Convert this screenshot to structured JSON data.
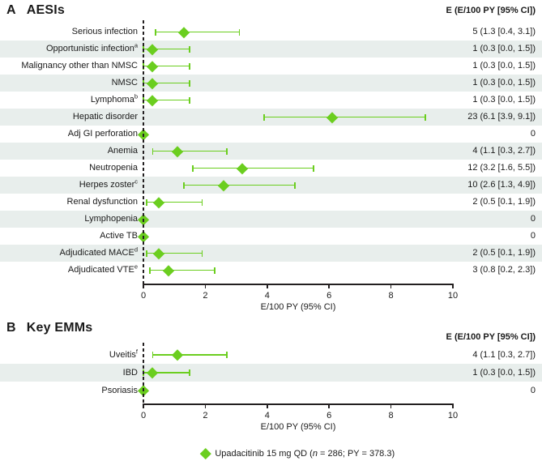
{
  "colors": {
    "marker_green": "#6BCE1F",
    "row_band": "#E8EEEC",
    "axis_black": "#231F20",
    "text": "#1A1A1A"
  },
  "legend": {
    "marker": "diamond-icon",
    "before_n": "Upadacitinib 15 mg QD (",
    "n": "n",
    "after_n": " = 286; PY = 378.3)"
  },
  "chart_data": [
    {
      "type": "scatter",
      "subtype": "forest-plot",
      "panel_label": "A",
      "title": "AESIs",
      "value_column_header": "E (E/100 PY [95% CI])",
      "xlabel": "E/100 PY (95% CI)",
      "xlim": [
        0,
        10
      ],
      "xticks": [
        0,
        2,
        4,
        6,
        8,
        10
      ],
      "grid": false,
      "series_name": "Upadacitinib 15 mg QD",
      "rows": [
        {
          "category": "Serious infection",
          "sup": "",
          "events": 5,
          "rate": 1.3,
          "ci_low": 0.4,
          "ci_high": 3.1,
          "value_label": "5 (1.3 [0.4, 3.1])"
        },
        {
          "category": "Opportunistic infection",
          "sup": "a",
          "events": 1,
          "rate": 0.3,
          "ci_low": 0.0,
          "ci_high": 1.5,
          "value_label": "1 (0.3 [0.0, 1.5])"
        },
        {
          "category": "Malignancy other than NMSC",
          "sup": "",
          "events": 1,
          "rate": 0.3,
          "ci_low": 0.0,
          "ci_high": 1.5,
          "value_label": "1 (0.3 [0.0, 1.5])"
        },
        {
          "category": "NMSC",
          "sup": "",
          "events": 1,
          "rate": 0.3,
          "ci_low": 0.0,
          "ci_high": 1.5,
          "value_label": "1 (0.3 [0.0, 1.5])"
        },
        {
          "category": "Lymphoma",
          "sup": "b",
          "events": 1,
          "rate": 0.3,
          "ci_low": 0.0,
          "ci_high": 1.5,
          "value_label": "1 (0.3 [0.0, 1.5])"
        },
        {
          "category": "Hepatic disorder",
          "sup": "",
          "events": 23,
          "rate": 6.1,
          "ci_low": 3.9,
          "ci_high": 9.1,
          "value_label": "23 (6.1 [3.9, 9.1])"
        },
        {
          "category": "Adj GI perforation",
          "sup": "",
          "events": 0,
          "rate": 0,
          "ci_low": null,
          "ci_high": null,
          "value_label": "0"
        },
        {
          "category": "Anemia",
          "sup": "",
          "events": 4,
          "rate": 1.1,
          "ci_low": 0.3,
          "ci_high": 2.7,
          "value_label": "4 (1.1 [0.3, 2.7])"
        },
        {
          "category": "Neutropenia",
          "sup": "",
          "events": 12,
          "rate": 3.2,
          "ci_low": 1.6,
          "ci_high": 5.5,
          "value_label": "12 (3.2 [1.6, 5.5])"
        },
        {
          "category": "Herpes zoster",
          "sup": "c",
          "events": 10,
          "rate": 2.6,
          "ci_low": 1.3,
          "ci_high": 4.9,
          "value_label": "10 (2.6 [1.3, 4.9])"
        },
        {
          "category": "Renal dysfunction",
          "sup": "",
          "events": 2,
          "rate": 0.5,
          "ci_low": 0.1,
          "ci_high": 1.9,
          "value_label": "2 (0.5 [0.1, 1.9])"
        },
        {
          "category": "Lymphopenia",
          "sup": "",
          "events": 0,
          "rate": 0,
          "ci_low": null,
          "ci_high": null,
          "value_label": "0"
        },
        {
          "category": "Active TB",
          "sup": "",
          "events": 0,
          "rate": 0,
          "ci_low": null,
          "ci_high": null,
          "value_label": "0"
        },
        {
          "category": "Adjudicated MACE",
          "sup": "d",
          "events": 2,
          "rate": 0.5,
          "ci_low": 0.1,
          "ci_high": 1.9,
          "value_label": "2 (0.5 [0.1, 1.9])"
        },
        {
          "category": "Adjudicated VTE",
          "sup": "e",
          "events": 3,
          "rate": 0.8,
          "ci_low": 0.2,
          "ci_high": 2.3,
          "value_label": "3 (0.8 [0.2, 2.3])"
        }
      ]
    },
    {
      "type": "scatter",
      "subtype": "forest-plot",
      "panel_label": "B",
      "title": "Key EMMs",
      "value_column_header": "E (E/100 PY [95% CI])",
      "xlabel": "E/100 PY (95% CI)",
      "xlim": [
        0,
        10
      ],
      "xticks": [
        0,
        2,
        4,
        6,
        8,
        10
      ],
      "grid": false,
      "series_name": "Upadacitinib 15 mg QD",
      "rows": [
        {
          "category": "Uveitis",
          "sup": "f",
          "events": 4,
          "rate": 1.1,
          "ci_low": 0.3,
          "ci_high": 2.7,
          "value_label": "4 (1.1 [0.3, 2.7])"
        },
        {
          "category": "IBD",
          "sup": "",
          "events": 1,
          "rate": 0.3,
          "ci_low": 0.0,
          "ci_high": 1.5,
          "value_label": "1 (0.3 [0.0, 1.5])"
        },
        {
          "category": "Psoriasis",
          "sup": "",
          "events": 0,
          "rate": 0,
          "ci_low": null,
          "ci_high": null,
          "value_label": "0"
        }
      ]
    }
  ]
}
